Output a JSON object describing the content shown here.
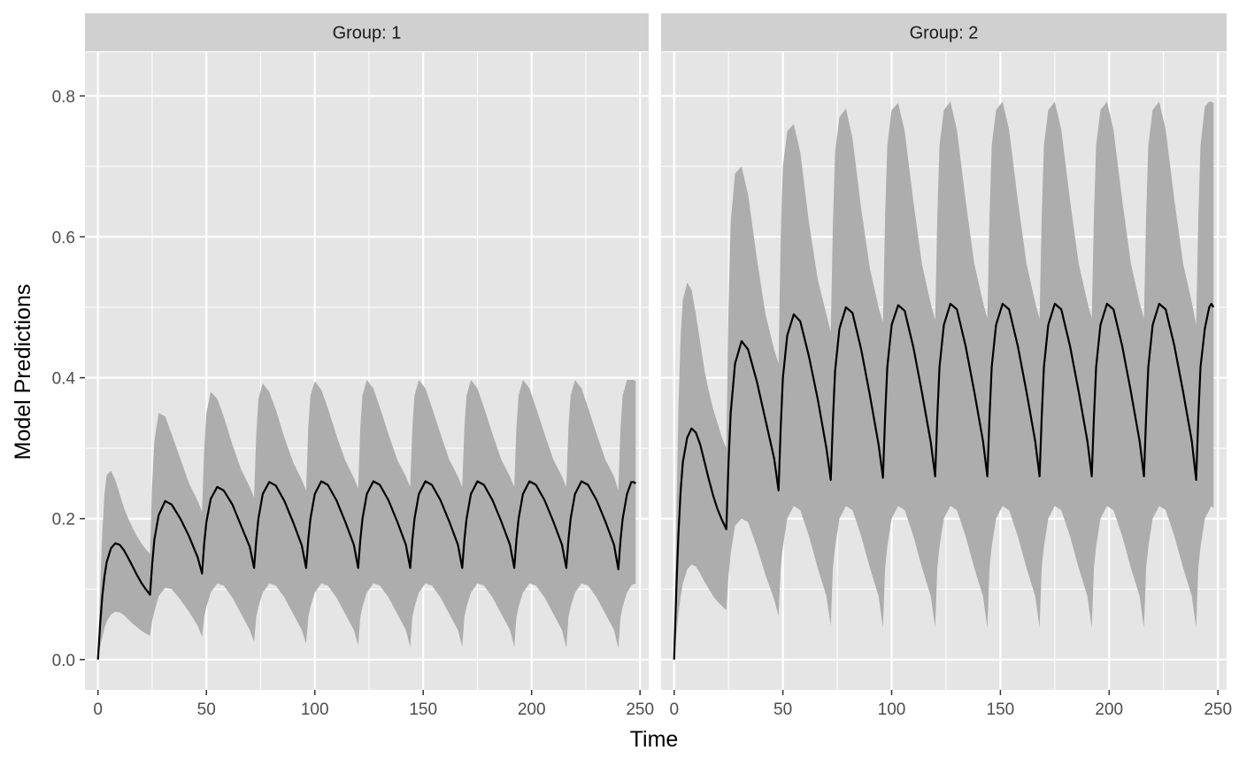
{
  "chart_data": {
    "type": "line",
    "xlabel": "Time",
    "ylabel": "Model Predictions",
    "xlim": [
      -6,
      254
    ],
    "ylim": [
      -0.043,
      0.862
    ],
    "x_ticks": [
      0,
      50,
      100,
      150,
      200,
      250
    ],
    "x_tick_labels": [
      "0",
      "50",
      "100",
      "150",
      "200",
      "250"
    ],
    "y_ticks": [
      0,
      0.2,
      0.4,
      0.6,
      0.8
    ],
    "y_tick_labels": [
      "0.0",
      "0.2",
      "0.4",
      "0.6",
      "0.8"
    ],
    "grid": true,
    "dose_interval": 24,
    "colors": {
      "panel_bg": "#e5e5e5",
      "strip_bg": "#d0d0d0",
      "ribbon": "#adadad",
      "grid": "#ffffff",
      "line": "#000000"
    },
    "panels": [
      {
        "strip_label": "Group: 1",
        "series": [
          {
            "x": [
              0,
              1,
              2,
              3,
              4,
              6,
              8,
              10,
              12,
              14,
              16,
              18,
              20,
              22,
              24,
              25,
              26,
              28,
              31,
              34,
              38,
              42,
              46,
              48,
              49,
              50,
              52,
              55,
              58,
              62,
              66,
              70,
              72,
              73,
              74,
              76,
              79,
              82,
              86,
              90,
              94,
              96,
              97,
              98,
              100,
              103,
              106,
              110,
              114,
              118,
              120,
              121,
              122,
              124,
              127,
              130,
              134,
              138,
              142,
              144,
              145,
              146,
              148,
              151,
              154,
              158,
              162,
              166,
              168,
              169,
              170,
              172,
              175,
              178,
              182,
              186,
              190,
              192,
              193,
              194,
              196,
              199,
              202,
              206,
              210,
              214,
              216,
              217,
              218,
              220,
              223,
              226,
              230,
              234,
              238,
              240,
              241,
              242,
              244,
              246,
              247,
              248
            ],
            "y": [
              0,
              0.05,
              0.09,
              0.118,
              0.138,
              0.158,
              0.165,
              0.163,
              0.155,
              0.144,
              0.132,
              0.12,
              0.109,
              0.1,
              0.092,
              0.135,
              0.17,
              0.205,
              0.225,
              0.22,
              0.2,
              0.175,
              0.145,
              0.122,
              0.165,
              0.195,
              0.228,
              0.245,
              0.24,
              0.22,
              0.19,
              0.16,
              0.13,
              0.17,
              0.2,
              0.235,
              0.252,
              0.247,
              0.225,
              0.195,
              0.162,
              0.13,
              0.17,
              0.2,
              0.235,
              0.253,
              0.248,
              0.226,
              0.196,
              0.163,
              0.13,
              0.17,
              0.2,
              0.235,
              0.253,
              0.248,
              0.226,
              0.196,
              0.163,
              0.13,
              0.17,
              0.2,
              0.235,
              0.253,
              0.248,
              0.226,
              0.196,
              0.163,
              0.13,
              0.17,
              0.2,
              0.235,
              0.253,
              0.248,
              0.226,
              0.196,
              0.163,
              0.13,
              0.17,
              0.2,
              0.235,
              0.253,
              0.248,
              0.226,
              0.196,
              0.163,
              0.13,
              0.17,
              0.2,
              0.235,
              0.253,
              0.248,
              0.226,
              0.196,
              0.163,
              0.128,
              0.17,
              0.2,
              0.235,
              0.252,
              0.252,
              0.25
            ],
            "lower": [
              0,
              0.018,
              0.032,
              0.045,
              0.054,
              0.064,
              0.068,
              0.067,
              0.063,
              0.057,
              0.051,
              0.046,
              0.041,
              0.037,
              0.034,
              0.055,
              0.068,
              0.09,
              0.102,
              0.1,
              0.085,
              0.068,
              0.048,
              0.032,
              0.06,
              0.075,
              0.095,
              0.108,
              0.105,
              0.088,
              0.065,
              0.042,
              0.025,
              0.06,
              0.075,
              0.095,
              0.108,
              0.105,
              0.088,
              0.065,
              0.042,
              0.022,
              0.06,
              0.075,
              0.095,
              0.108,
              0.105,
              0.088,
              0.065,
              0.042,
              0.02,
              0.06,
              0.075,
              0.095,
              0.108,
              0.105,
              0.088,
              0.065,
              0.042,
              0.018,
              0.06,
              0.075,
              0.095,
              0.108,
              0.105,
              0.088,
              0.065,
              0.042,
              0.018,
              0.06,
              0.075,
              0.095,
              0.108,
              0.105,
              0.088,
              0.065,
              0.042,
              0.018,
              0.06,
              0.075,
              0.095,
              0.108,
              0.105,
              0.088,
              0.065,
              0.042,
              0.017,
              0.06,
              0.075,
              0.095,
              0.108,
              0.105,
              0.088,
              0.065,
              0.042,
              0.016,
              0.06,
              0.075,
              0.095,
              0.105,
              0.107,
              0.107
            ],
            "upper": [
              0,
              0.1,
              0.18,
              0.235,
              0.262,
              0.268,
              0.255,
              0.235,
              0.215,
              0.2,
              0.187,
              0.175,
              0.165,
              0.157,
              0.15,
              0.25,
              0.31,
              0.35,
              0.345,
              0.32,
              0.285,
              0.25,
              0.225,
              0.21,
              0.3,
              0.35,
              0.38,
              0.37,
              0.345,
              0.305,
              0.27,
              0.245,
              0.23,
              0.32,
              0.37,
              0.392,
              0.38,
              0.355,
              0.315,
              0.28,
              0.255,
              0.24,
              0.33,
              0.375,
              0.395,
              0.383,
              0.357,
              0.318,
              0.283,
              0.258,
              0.243,
              0.33,
              0.375,
              0.397,
              0.385,
              0.358,
              0.32,
              0.284,
              0.26,
              0.245,
              0.33,
              0.375,
              0.397,
              0.385,
              0.358,
              0.32,
              0.284,
              0.26,
              0.245,
              0.33,
              0.375,
              0.397,
              0.385,
              0.358,
              0.32,
              0.284,
              0.26,
              0.245,
              0.33,
              0.375,
              0.397,
              0.385,
              0.358,
              0.32,
              0.284,
              0.26,
              0.245,
              0.33,
              0.375,
              0.397,
              0.385,
              0.358,
              0.32,
              0.284,
              0.26,
              0.24,
              0.33,
              0.375,
              0.397,
              0.397,
              0.397,
              0.395
            ]
          }
        ]
      },
      {
        "strip_label": "Group: 2",
        "series": [
          {
            "x": [
              0,
              1,
              2,
              3,
              4,
              6,
              8,
              10,
              12,
              14,
              16,
              18,
              20,
              22,
              24,
              25,
              26,
              28,
              31,
              34,
              38,
              42,
              46,
              48,
              49,
              50,
              52,
              55,
              58,
              62,
              66,
              70,
              72,
              73,
              74,
              76,
              79,
              82,
              86,
              90,
              94,
              96,
              97,
              98,
              100,
              103,
              106,
              110,
              114,
              118,
              120,
              121,
              122,
              124,
              127,
              130,
              134,
              138,
              142,
              144,
              145,
              146,
              148,
              151,
              154,
              158,
              162,
              166,
              168,
              169,
              170,
              172,
              175,
              178,
              182,
              186,
              190,
              192,
              193,
              194,
              196,
              199,
              202,
              206,
              210,
              214,
              216,
              217,
              218,
              220,
              223,
              226,
              230,
              234,
              238,
              240,
              241,
              242,
              244,
              246,
              247,
              248
            ],
            "y": [
              0,
              0.1,
              0.18,
              0.24,
              0.28,
              0.315,
              0.328,
              0.322,
              0.305,
              0.28,
              0.255,
              0.232,
              0.213,
              0.198,
              0.185,
              0.28,
              0.35,
              0.42,
              0.452,
              0.44,
              0.395,
              0.34,
              0.285,
              0.24,
              0.33,
              0.4,
              0.46,
              0.49,
              0.48,
              0.43,
              0.37,
              0.3,
              0.255,
              0.34,
              0.41,
              0.47,
              0.5,
              0.492,
              0.44,
              0.375,
              0.305,
              0.258,
              0.345,
              0.415,
              0.475,
              0.503,
              0.495,
              0.443,
              0.378,
              0.308,
              0.26,
              0.345,
              0.415,
              0.475,
              0.505,
              0.497,
              0.445,
              0.38,
              0.31,
              0.26,
              0.345,
              0.415,
              0.475,
              0.505,
              0.497,
              0.445,
              0.38,
              0.31,
              0.26,
              0.345,
              0.415,
              0.475,
              0.505,
              0.497,
              0.445,
              0.38,
              0.31,
              0.26,
              0.345,
              0.415,
              0.475,
              0.505,
              0.497,
              0.445,
              0.38,
              0.31,
              0.26,
              0.345,
              0.415,
              0.475,
              0.505,
              0.497,
              0.445,
              0.38,
              0.31,
              0.255,
              0.345,
              0.415,
              0.47,
              0.5,
              0.505,
              0.5
            ],
            "lower": [
              0,
              0.035,
              0.065,
              0.09,
              0.108,
              0.128,
              0.135,
              0.132,
              0.122,
              0.11,
              0.1,
              0.09,
              0.082,
              0.076,
              0.07,
              0.12,
              0.15,
              0.19,
              0.2,
              0.195,
              0.16,
              0.12,
              0.085,
              0.062,
              0.13,
              0.16,
              0.2,
              0.218,
              0.212,
              0.175,
              0.13,
              0.09,
              0.048,
              0.13,
              0.16,
              0.2,
              0.218,
              0.212,
              0.175,
              0.13,
              0.09,
              0.045,
              0.13,
              0.16,
              0.2,
              0.218,
              0.212,
              0.175,
              0.13,
              0.09,
              0.045,
              0.13,
              0.16,
              0.2,
              0.218,
              0.212,
              0.175,
              0.13,
              0.09,
              0.045,
              0.13,
              0.16,
              0.2,
              0.218,
              0.212,
              0.175,
              0.13,
              0.09,
              0.045,
              0.13,
              0.16,
              0.2,
              0.218,
              0.212,
              0.175,
              0.13,
              0.09,
              0.045,
              0.13,
              0.16,
              0.2,
              0.218,
              0.212,
              0.175,
              0.13,
              0.09,
              0.045,
              0.13,
              0.16,
              0.2,
              0.218,
              0.212,
              0.175,
              0.13,
              0.09,
              0.045,
              0.13,
              0.16,
              0.2,
              0.212,
              0.218,
              0.215
            ],
            "upper": [
              0,
              0.2,
              0.36,
              0.46,
              0.51,
              0.535,
              0.525,
              0.49,
              0.45,
              0.41,
              0.38,
              0.355,
              0.335,
              0.315,
              0.3,
              0.5,
              0.62,
              0.69,
              0.7,
              0.66,
              0.57,
              0.49,
              0.44,
              0.42,
              0.6,
              0.7,
              0.75,
              0.76,
              0.72,
              0.62,
              0.54,
              0.49,
              0.465,
              0.62,
              0.72,
              0.77,
              0.782,
              0.74,
              0.64,
              0.555,
              0.5,
              0.478,
              0.63,
              0.73,
              0.78,
              0.79,
              0.75,
              0.65,
              0.56,
              0.505,
              0.482,
              0.63,
              0.73,
              0.78,
              0.792,
              0.752,
              0.652,
              0.562,
              0.507,
              0.484,
              0.63,
              0.73,
              0.78,
              0.792,
              0.752,
              0.652,
              0.562,
              0.507,
              0.484,
              0.63,
              0.73,
              0.78,
              0.792,
              0.752,
              0.652,
              0.562,
              0.507,
              0.484,
              0.63,
              0.73,
              0.78,
              0.792,
              0.752,
              0.652,
              0.562,
              0.507,
              0.484,
              0.63,
              0.73,
              0.78,
              0.792,
              0.752,
              0.652,
              0.562,
              0.507,
              0.475,
              0.63,
              0.73,
              0.785,
              0.792,
              0.792,
              0.79
            ]
          }
        ]
      }
    ]
  }
}
